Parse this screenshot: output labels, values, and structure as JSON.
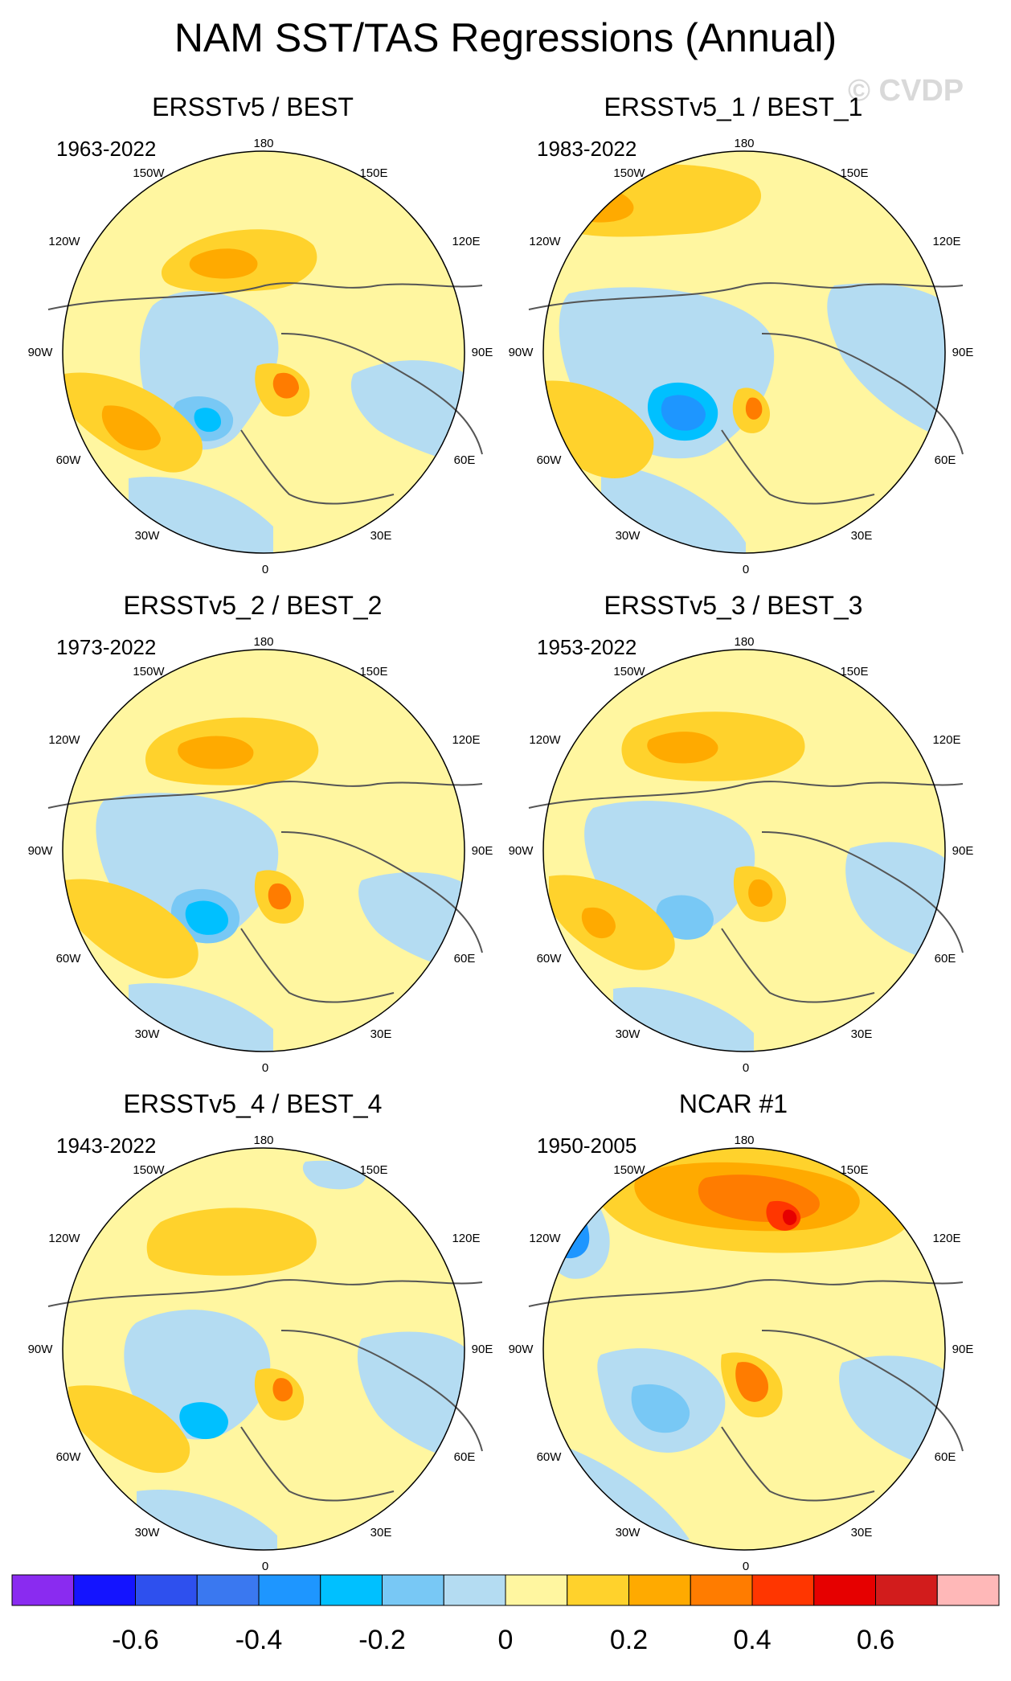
{
  "title": "NAM SST/TAS Regressions (Annual)",
  "watermark": "© CVDP",
  "longitude_labels": [
    "180",
    "150E",
    "120E",
    "90E",
    "60E",
    "30E",
    "0",
    "30W",
    "60W",
    "90W",
    "120W",
    "150W"
  ],
  "panels": [
    {
      "title": "ERSSTv5 / BEST",
      "years": "1963-2022"
    },
    {
      "title": "ERSSTv5_1 / BEST_1",
      "years": "1983-2022"
    },
    {
      "title": "ERSSTv5_2 / BEST_2",
      "years": "1973-2022"
    },
    {
      "title": "ERSSTv5_3 / BEST_3",
      "years": "1953-2022"
    },
    {
      "title": "ERSSTv5_4 / BEST_4",
      "years": "1943-2022"
    },
    {
      "title": "NCAR #1",
      "years": "1950-2005"
    }
  ],
  "colorbar": {
    "colors": [
      "#8a2bf0",
      "#1414ff",
      "#2e50ee",
      "#3a78f0",
      "#1e96ff",
      "#00c0ff",
      "#78c8f5",
      "#b4dcf2",
      "#fff6a0",
      "#ffd22c",
      "#ffaa00",
      "#ff7c00",
      "#ff3600",
      "#e60000",
      "#d21c1c",
      "#ffb8b8"
    ],
    "labels": [
      "-0.6",
      "-0.4",
      "-0.2",
      "0",
      "0.2",
      "0.4",
      "0.6"
    ]
  },
  "colors": {
    "neutral_positive": "#fff6a0",
    "light_negative": "#b4dcf2",
    "coast": "#555555"
  }
}
